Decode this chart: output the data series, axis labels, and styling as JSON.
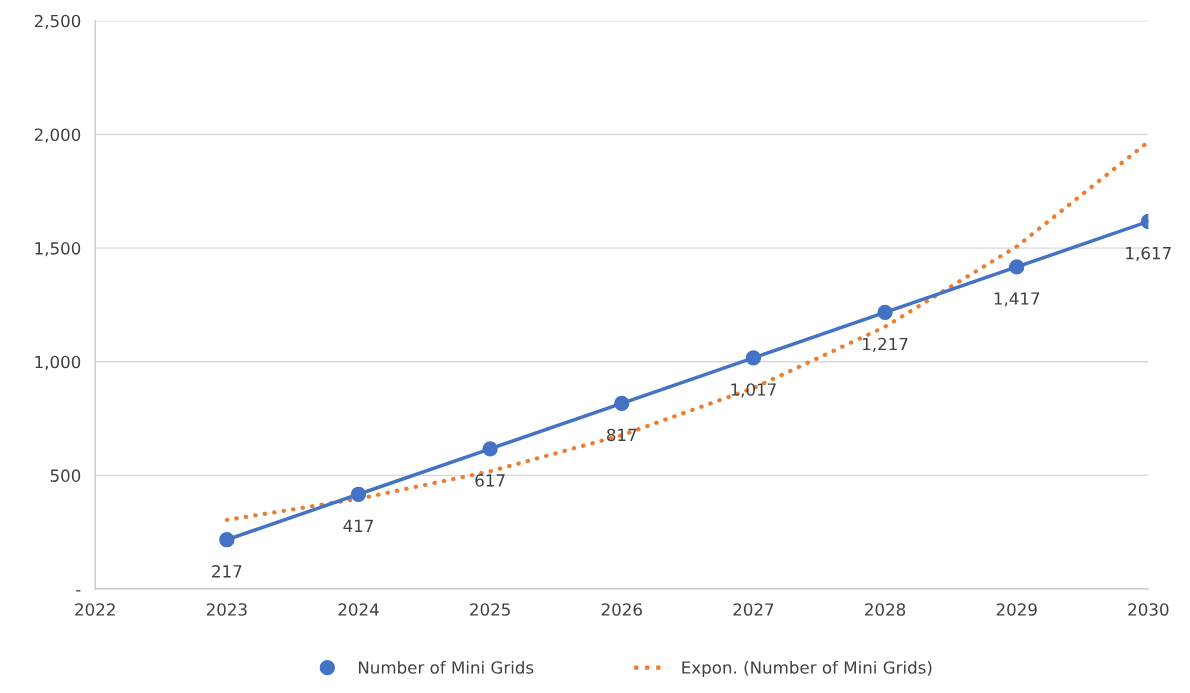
{
  "chart_data": {
    "type": "line",
    "x": [
      2023,
      2024,
      2025,
      2026,
      2027,
      2028,
      2029,
      2030
    ],
    "series": [
      {
        "name": "Number of Mini Grids",
        "color": "#4472c4",
        "marker": "circle",
        "line_style": "solid",
        "values": [
          217,
          417,
          617,
          817,
          1017,
          1217,
          1417,
          1617
        ],
        "value_labels": [
          "217",
          "417",
          "617",
          "817",
          "1,017",
          "1,217",
          "1,417",
          "1,617"
        ]
      },
      {
        "name": "Expon. (Number of Mini Grids)",
        "color": "#ed7d31",
        "marker": "none",
        "line_style": "dotted",
        "values": [
          304,
          397,
          518,
          677,
          884,
          1154,
          1507,
          1968
        ]
      }
    ],
    "xlim": [
      2022,
      2030
    ],
    "xticks": [
      2022,
      2023,
      2024,
      2025,
      2026,
      2027,
      2028,
      2029,
      2030
    ],
    "ylim": [
      0,
      2500
    ],
    "yticks": [
      {
        "value": 0,
        "label": "-"
      },
      500,
      {
        "value": 1000,
        "label": "1,000"
      },
      {
        "value": 1500,
        "label": "1,500"
      },
      {
        "value": 2000,
        "label": "2,000"
      },
      {
        "value": 2500,
        "label": "2,500"
      }
    ],
    "grid": "y",
    "legend": "bottom"
  }
}
